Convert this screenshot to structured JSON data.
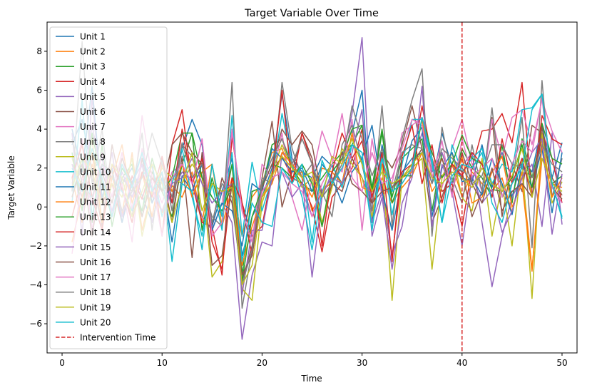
{
  "chart_data": {
    "type": "line",
    "title": "Target Variable Over Time",
    "xlabel": "Time",
    "ylabel": "Target Variable",
    "xlim": [
      -1.5,
      51.5
    ],
    "ylim": [
      -7.5,
      9.5
    ],
    "xticks": [
      "0",
      "10",
      "20",
      "30",
      "40",
      "50"
    ],
    "yticks": [
      "−6",
      "−4",
      "−2",
      "0",
      "2",
      "4",
      "6",
      "8"
    ],
    "grid": false,
    "legend_position": "upper-left",
    "intervention": {
      "label": "Intervention Time",
      "x": 40,
      "color": "#d62728",
      "style": "dashed"
    },
    "x": [
      1,
      2,
      3,
      4,
      5,
      6,
      7,
      8,
      9,
      10,
      11,
      12,
      13,
      14,
      15,
      16,
      17,
      18,
      19,
      20,
      21,
      22,
      23,
      24,
      25,
      26,
      27,
      28,
      29,
      30,
      31,
      32,
      33,
      34,
      35,
      36,
      37,
      38,
      39,
      40,
      41,
      42,
      43,
      44,
      45,
      46,
      47,
      48,
      49,
      50
    ],
    "series": [
      {
        "name": "Unit 1",
        "color": "#1f77b4",
        "values": [
          3.2,
          4.5,
          1.8,
          2.6,
          -0.5,
          1.2,
          2.0,
          0.6,
          -0.8,
          1.5,
          0.2,
          3.0,
          4.5,
          3.2,
          -1.0,
          0.8,
          2.5,
          -2.5,
          -0.5,
          0.5,
          2.0,
          5.8,
          2.5,
          1.8,
          1.5,
          2.6,
          2.1,
          1.2,
          3.8,
          6.0,
          -0.8,
          3.2,
          1.0,
          1.8,
          2.5,
          2.8,
          1.2,
          3.8,
          2.1,
          1.5,
          1.3,
          3.2,
          1.0,
          2.8,
          0.5,
          2.5,
          1.8,
          4.2,
          1.5,
          3.3
        ]
      },
      {
        "name": "Unit 2",
        "color": "#ff7f0e",
        "values": [
          1.5,
          -0.8,
          2.2,
          0.5,
          1.6,
          -0.4,
          2.8,
          -1.2,
          0.9,
          -0.3,
          1.1,
          0.5,
          1.8,
          -0.8,
          2.2,
          -1.0,
          1.0,
          -1.5,
          0.5,
          1.2,
          2.8,
          3.0,
          1.5,
          1.8,
          -0.2,
          0.8,
          1.3,
          2.5,
          3.5,
          2.2,
          -0.2,
          1.5,
          0.2,
          1.0,
          1.6,
          2.8,
          0.8,
          1.6,
          2.2,
          0.5,
          1.8,
          1.2,
          0.8,
          1.5,
          -0.3,
          1.8,
          -3.2,
          2.5,
          1.2,
          1.0
        ]
      },
      {
        "name": "Unit 3",
        "color": "#2ca02c",
        "values": [
          0.5,
          2.5,
          -0.8,
          3.2,
          -1.0,
          1.5,
          2.2,
          -0.5,
          1.8,
          0.8,
          -0.5,
          2.2,
          3.8,
          -1.2,
          1.5,
          -0.5,
          2.2,
          -3.5,
          0.8,
          1.0,
          3.2,
          3.5,
          2.0,
          1.2,
          0.8,
          1.5,
          2.2,
          2.8,
          3.2,
          4.2,
          1.0,
          4.0,
          0.5,
          2.5,
          3.0,
          3.5,
          -0.2,
          2.8,
          1.2,
          3.0,
          2.0,
          1.5,
          0.5,
          3.2,
          0.2,
          3.5,
          1.5,
          3.8,
          1.2,
          1.6
        ]
      },
      {
        "name": "Unit 4",
        "color": "#d62728",
        "values": [
          -0.5,
          1.5,
          2.8,
          0.2,
          1.2,
          -0.8,
          1.6,
          0.4,
          2.2,
          -1.5,
          3.2,
          5.0,
          1.2,
          -0.8,
          -1.0,
          -3.5,
          3.6,
          0.2,
          -1.5,
          -1.0,
          1.8,
          2.6,
          1.5,
          1.2,
          0.0,
          -2.3,
          0.5,
          1.2,
          2.0,
          4.0,
          0.2,
          1.2,
          -2.6,
          1.8,
          2.2,
          5.2,
          2.5,
          0.8,
          1.2,
          -1.0,
          2.0,
          3.9,
          4.0,
          4.8,
          3.3,
          6.4,
          0.5,
          3.8,
          2.5,
          0.2
        ]
      },
      {
        "name": "Unit 5",
        "color": "#9467bd",
        "values": [
          3.8,
          -1.5,
          5.6,
          0.3,
          2.8,
          -0.5,
          1.3,
          2.2,
          -0.8,
          1.5,
          0.8,
          1.8,
          1.3,
          -0.5,
          -1.2,
          0.2,
          -0.8,
          -6.8,
          -3.5,
          -1.8,
          -2.0,
          2.8,
          2.5,
          1.5,
          -3.6,
          0.5,
          1.8,
          2.5,
          4.8,
          8.7,
          -0.8,
          0.8,
          -2.4,
          -1.0,
          2.2,
          3.8,
          1.8,
          2.8,
          1.2,
          2.1,
          2.8,
          -0.8,
          -4.1,
          -1.5,
          0.5,
          1.5,
          2.2,
          -1.0,
          3.8,
          -0.9
        ]
      },
      {
        "name": "Unit 6",
        "color": "#8c564b",
        "values": [
          2.2,
          0.5,
          1.8,
          -1.0,
          3.2,
          0.8,
          -0.5,
          2.5,
          0.2,
          1.8,
          -0.8,
          2.6,
          -2.6,
          2.8,
          -0.9,
          1.5,
          0.2,
          -3.8,
          -2.0,
          1.5,
          4.4,
          0.0,
          1.8,
          3.8,
          2.5,
          -1.0,
          1.2,
          0.8,
          2.5,
          1.5,
          0.2,
          2.8,
          2.0,
          3.2,
          5.2,
          3.0,
          -0.8,
          0.5,
          2.2,
          1.8,
          -0.5,
          0.8,
          4.6,
          -0.5,
          2.2,
          0.8,
          4.2,
          3.8,
          1.5,
          0.6
        ]
      },
      {
        "name": "Unit 7",
        "color": "#e377c2",
        "values": [
          1.2,
          3.5,
          -1.2,
          2.2,
          0.5,
          2.8,
          -0.2,
          4.7,
          1.5,
          0.2,
          1.8,
          2.2,
          1.2,
          3.5,
          -1.2,
          0.2,
          3.8,
          -0.2,
          -1.8,
          2.2,
          1.5,
          3.8,
          0.5,
          -1.2,
          1.5,
          3.9,
          2.5,
          1.8,
          4.5,
          -1.2,
          3.5,
          0.5,
          1.2,
          3.8,
          4.2,
          4.6,
          2.0,
          1.0,
          3.0,
          4.5,
          2.2,
          0.8,
          4.5,
          2.5,
          4.6,
          5.0,
          3.2,
          5.5,
          3.9,
          2.8
        ]
      },
      {
        "name": "Unit 8",
        "color": "#7f7f7f",
        "values": [
          0.8,
          8.5,
          1.2,
          4.0,
          -0.5,
          1.5,
          0.8,
          3.8,
          -1.2,
          2.5,
          -0.2,
          3.2,
          2.6,
          1.2,
          -0.5,
          -1.0,
          6.4,
          -5.2,
          -2.2,
          1.5,
          1.2,
          6.4,
          3.0,
          1.5,
          2.2,
          0.8,
          -0.5,
          3.2,
          4.2,
          2.2,
          -0.2,
          5.2,
          -1.0,
          3.5,
          5.5,
          7.1,
          -1.5,
          4.1,
          1.5,
          0.2,
          3.2,
          0.8,
          5.1,
          0.5,
          1.2,
          4.6,
          -2.1,
          6.5,
          0.5,
          2.5
        ]
      },
      {
        "name": "Unit 9",
        "color": "#bcbd22",
        "values": [
          2.5,
          1.0,
          3.5,
          -0.8,
          1.2,
          0.5,
          2.5,
          -1.5,
          0.8,
          2.0,
          1.5,
          1.2,
          2.2,
          1.5,
          -3.6,
          -2.8,
          1.2,
          -4.2,
          -4.8,
          0.2,
          1.8,
          3.2,
          2.0,
          1.0,
          1.5,
          -0.8,
          1.0,
          3.0,
          2.2,
          1.5,
          -0.5,
          2.2,
          -4.8,
          1.5,
          2.0,
          2.5,
          -3.2,
          1.5,
          2.8,
          0.5,
          -0.2,
          2.5,
          -1.5,
          1.2,
          -2.0,
          2.4,
          -4.7,
          3.8,
          0.2,
          1.3
        ]
      },
      {
        "name": "Unit 10",
        "color": "#17becf",
        "values": [
          0.2,
          5.5,
          -0.5,
          2.2,
          1.5,
          0.8,
          -0.2,
          1.6,
          2.2,
          -0.5,
          1.2,
          3.0,
          0.5,
          -1.5,
          1.2,
          -1.2,
          4.7,
          -1.5,
          2.3,
          -0.2,
          1.5,
          4.8,
          2.2,
          0.5,
          -2.2,
          0.8,
          2.2,
          1.0,
          3.2,
          2.5,
          -1.2,
          2.8,
          -0.4,
          2.2,
          4.5,
          4.5,
          2.2,
          -0.8,
          3.2,
          1.8,
          2.5,
          3.0,
          1.2,
          2.2,
          1.8,
          5.0,
          5.1,
          5.8,
          1.2,
          -0.5
        ]
      },
      {
        "name": "Unit 11",
        "color": "#1f77b4",
        "values": [
          4.0,
          1.8,
          6.2,
          0.5,
          2.0,
          -0.8,
          1.2,
          2.8,
          0.2,
          1.5,
          -1.8,
          1.6,
          0.8,
          2.2,
          -1.2,
          0.2,
          -0.2,
          -2.0,
          1.2,
          0.8,
          3.0,
          2.5,
          1.8,
          2.0,
          0.8,
          2.2,
          1.5,
          0.2,
          1.8,
          2.5,
          4.2,
          0.8,
          -1.2,
          1.5,
          3.4,
          4.1,
          -0.5,
          2.0,
          2.8,
          1.3,
          1.5,
          0.6,
          2.5,
          1.2,
          -0.4,
          2.2,
          1.0,
          3.0,
          -0.3,
          2.8
        ]
      },
      {
        "name": "Unit 12",
        "color": "#ff7f0e",
        "values": [
          -1.8,
          0.5,
          2.8,
          -0.8,
          1.5,
          3.2,
          0.2,
          1.8,
          -0.5,
          2.2,
          0.8,
          2.2,
          0.5,
          1.8,
          2.2,
          -0.5,
          1.5,
          -3.0,
          -1.0,
          0.5,
          1.2,
          2.8,
          2.2,
          1.5,
          0.5,
          2.0,
          1.8,
          1.2,
          3.8,
          1.0,
          0.8,
          2.2,
          1.0,
          1.5,
          1.8,
          4.5,
          1.5,
          2.5,
          0.8,
          2.6,
          0.2,
          0.5,
          1.8,
          2.6,
          0.0,
          1.2,
          -3.3,
          3.2,
          0.5,
          1.5
        ]
      },
      {
        "name": "Unit 13",
        "color": "#2ca02c",
        "values": [
          2.8,
          -0.2,
          3.8,
          1.2,
          -0.5,
          2.0,
          1.2,
          -0.2,
          2.5,
          0.8,
          1.5,
          3.8,
          3.8,
          1.5,
          0.5,
          -0.2,
          1.2,
          -3.8,
          -0.5,
          1.0,
          2.2,
          2.0,
          1.5,
          2.2,
          1.2,
          -1.0,
          1.8,
          2.5,
          4.0,
          4.2,
          0.8,
          3.8,
          0.2,
          1.6,
          1.6,
          4.6,
          2.8,
          1.5,
          2.2,
          3.7,
          2.5,
          2.2,
          0.9,
          0.8,
          1.5,
          3.2,
          1.0,
          4.3,
          2.5,
          2.2
        ]
      },
      {
        "name": "Unit 14",
        "color": "#d62728",
        "values": [
          1.5,
          3.2,
          0.5,
          -1.2,
          2.2,
          1.0,
          -0.8,
          1.8,
          0.5,
          2.6,
          0.2,
          4.0,
          1.2,
          2.5,
          -1.8,
          -3.2,
          1.5,
          0.2,
          -2.5,
          0.8,
          1.5,
          6.0,
          1.2,
          3.8,
          2.2,
          -2.0,
          1.8,
          3.8,
          2.5,
          3.4,
          0.5,
          2.8,
          -2.8,
          2.6,
          4.2,
          1.2,
          3.2,
          0.2,
          2.2,
          1.6,
          2.8,
          2.2,
          0.5,
          3.5,
          1.2,
          2.5,
          0.5,
          4.7,
          3.5,
          3.2
        ]
      },
      {
        "name": "Unit 15",
        "color": "#9467bd",
        "values": [
          2.2,
          0.8,
          4.2,
          1.5,
          -0.2,
          1.8,
          0.5,
          2.2,
          1.0,
          -0.2,
          1.2,
          1.5,
          2.5,
          1.2,
          0.2,
          0.8,
          1.2,
          -4.5,
          -1.2,
          -1.2,
          1.5,
          1.8,
          0.5,
          1.2,
          -0.5,
          0.8,
          1.5,
          1.2,
          2.8,
          5.0,
          -1.5,
          0.5,
          -3.2,
          0.2,
          1.5,
          6.2,
          -1.0,
          2.2,
          0.8,
          -2.0,
          1.6,
          0.2,
          0.9,
          -1.3,
          -0.2,
          1.5,
          2.8,
          3.5,
          -1.4,
          1.7
        ]
      },
      {
        "name": "Unit 16",
        "color": "#8c564b",
        "values": [
          0.5,
          2.2,
          -1.5,
          1.8,
          0.2,
          2.5,
          1.2,
          -0.5,
          1.5,
          0.8,
          3.2,
          3.8,
          2.8,
          2.2,
          -3.0,
          -2.5,
          1.2,
          -3.5,
          -2.5,
          1.0,
          2.2,
          4.0,
          3.2,
          3.9,
          3.2,
          0.5,
          1.2,
          2.8,
          1.2,
          0.8,
          0.2,
          0.8,
          1.0,
          1.5,
          2.2,
          3.0,
          1.2,
          2.5,
          0.8,
          2.8,
          1.2,
          0.2,
          2.0,
          -0.2,
          0.8,
          1.2,
          0.5,
          4.1,
          1.0,
          0.4
        ]
      },
      {
        "name": "Unit 17",
        "color": "#e377c2",
        "values": [
          -2.4,
          1.5,
          0.2,
          2.8,
          -0.5,
          1.2,
          -1.8,
          3.0,
          1.2,
          -1.5,
          1.5,
          2.2,
          1.2,
          3.5,
          -1.5,
          -0.8,
          4.0,
          -0.2,
          -1.8,
          0.8,
          1.5,
          1.8,
          1.2,
          0.8,
          -0.5,
          1.2,
          2.2,
          4.8,
          1.5,
          0.8,
          2.8,
          1.2,
          1.5,
          3.0,
          4.5,
          4.2,
          1.5,
          3.4,
          0.5,
          3.5,
          1.6,
          2.0,
          2.5,
          0.5,
          2.2,
          3.4,
          2.8,
          5.6,
          1.0,
          0.2
        ]
      },
      {
        "name": "Unit 18",
        "color": "#7f7f7f",
        "values": [
          3.5,
          1.2,
          0.5,
          2.2,
          1.8,
          -0.2,
          0.8,
          1.5,
          3.8,
          2.2,
          0.5,
          3.3,
          1.5,
          2.2,
          -0.8,
          1.2,
          0.5,
          -4.0,
          -2.2,
          1.2,
          2.5,
          3.5,
          2.2,
          3.5,
          2.2,
          0.5,
          1.2,
          2.2,
          5.2,
          3.5,
          1.6,
          3.0,
          0.8,
          2.8,
          3.2,
          3.0,
          1.2,
          3.0,
          2.5,
          2.0,
          1.2,
          1.6,
          3.2,
          3.2,
          2.2,
          2.0,
          1.5,
          3.2,
          2.2,
          1.8
        ]
      },
      {
        "name": "Unit 19",
        "color": "#bcbd22",
        "values": [
          1.0,
          2.5,
          1.8,
          0.2,
          2.2,
          1.5,
          -0.5,
          0.8,
          2.2,
          1.2,
          -0.8,
          1.2,
          2.8,
          -0.2,
          1.2,
          0.8,
          1.0,
          -4.0,
          -3.0,
          0.5,
          1.6,
          2.6,
          2.0,
          1.5,
          1.8,
          0.5,
          2.6,
          2.2,
          3.5,
          2.2,
          0.8,
          1.8,
          1.2,
          1.5,
          2.2,
          2.8,
          1.5,
          1.2,
          1.8,
          1.5,
          1.0,
          2.0,
          1.2,
          0.8,
          1.6,
          3.0,
          0.5,
          2.5,
          1.2,
          0.8
        ]
      },
      {
        "name": "Unit 20",
        "color": "#17becf",
        "values": [
          2.0,
          0.8,
          3.0,
          1.5,
          -0.5,
          2.2,
          1.0,
          2.8,
          0.8,
          1.8,
          -2.8,
          1.2,
          0.8,
          -2.2,
          2.2,
          -0.5,
          2.8,
          -2.8,
          0.2,
          -0.8,
          -1.0,
          2.0,
          1.2,
          2.2,
          -1.8,
          2.4,
          1.2,
          2.0,
          3.2,
          2.8,
          -1.2,
          2.5,
          0.8,
          1.2,
          2.0,
          4.6,
          2.5,
          -0.8,
          1.6,
          2.2,
          2.0,
          2.8,
          0.2,
          -0.8,
          1.2,
          2.0,
          5.0,
          5.8,
          1.2,
          -0.6
        ]
      }
    ]
  }
}
